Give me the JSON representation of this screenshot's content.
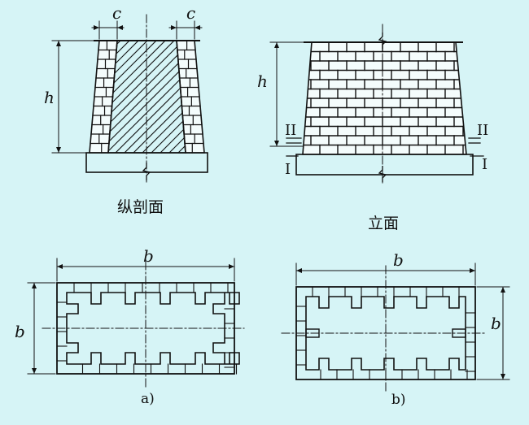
{
  "figure": {
    "labels": {
      "c_left": "c",
      "c_right": "c",
      "h_left": "h",
      "h_right": "h",
      "section_title": "纵剖面",
      "elevation_title": "立面",
      "mark_II_left": "II",
      "mark_II_right": "II",
      "mark_I_left": "I",
      "mark_I_right": "I",
      "b_top_a": "b",
      "b_side_a": "b",
      "b_top_b": "b",
      "b_side_b": "b",
      "caption_a": "a)",
      "caption_b": "b)"
    },
    "colors": {
      "background": "#d6f4f6",
      "ink": "#111111",
      "mortar": "#f4fcfc"
    }
  }
}
